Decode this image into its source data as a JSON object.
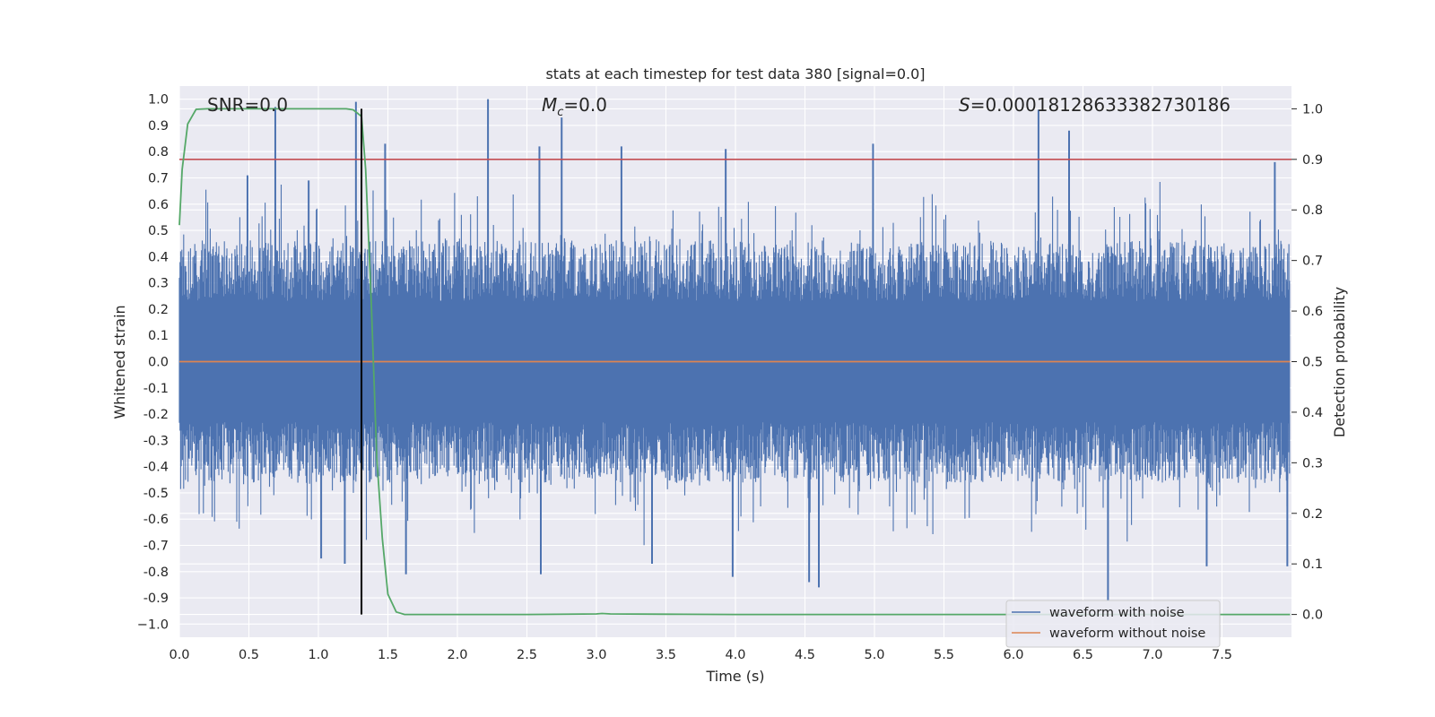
{
  "chart_data": {
    "type": "line",
    "title": "stats at each timestep for test data 380 [signal=0.0]",
    "xlabel": "Time (s)",
    "ylabel": "Whitened strain",
    "y2label": "Detection probability",
    "xlim": [
      0.0,
      8.0
    ],
    "ylim": [
      -1.05,
      1.05
    ],
    "y2lim": [
      -0.045,
      1.045
    ],
    "xticks": [
      "0.0",
      "0.5",
      "1.0",
      "1.5",
      "2.0",
      "2.5",
      "3.0",
      "3.5",
      "4.0",
      "4.5",
      "5.0",
      "5.5",
      "6.0",
      "6.5",
      "7.0",
      "7.5"
    ],
    "xtick_values": [
      0.0,
      0.5,
      1.0,
      1.5,
      2.0,
      2.5,
      3.0,
      3.5,
      4.0,
      4.5,
      5.0,
      5.5,
      6.0,
      6.5,
      7.0,
      7.5
    ],
    "yticks": [
      "1.0",
      "0.9",
      "0.8",
      "0.7",
      "0.6",
      "0.5",
      "0.4",
      "0.3",
      "0.2",
      "0.1",
      "0.0",
      "-0.1",
      "-0.2",
      "-0.3",
      "-0.4",
      "-0.5",
      "-0.6",
      "-0.7",
      "-0.8",
      "-0.9",
      "−1.0"
    ],
    "ytick_values": [
      1.0,
      0.9,
      0.8,
      0.7,
      0.6,
      0.5,
      0.4,
      0.3,
      0.2,
      0.1,
      0.0,
      -0.1,
      -0.2,
      -0.3,
      -0.4,
      -0.5,
      -0.6,
      -0.7,
      -0.8,
      -0.9,
      -1.0
    ],
    "y2ticks": [
      "1.0",
      "0.9",
      "0.8",
      "0.7",
      "0.6",
      "0.5",
      "0.4",
      "0.3",
      "0.2",
      "0.1",
      "0.0"
    ],
    "y2tick_values": [
      1.0,
      0.9,
      0.8,
      0.7,
      0.6,
      0.5,
      0.4,
      0.3,
      0.2,
      0.1,
      0.0
    ],
    "annotations": {
      "snr": "SNR=0.0",
      "mc": "=0.0",
      "s": "=0.00018128633382730186"
    },
    "threshold": {
      "value": 0.9,
      "axis": "right",
      "color": "#c44e52"
    },
    "marker_line": {
      "x": 1.31,
      "color": "#000000"
    },
    "series": [
      {
        "name": "waveform with noise",
        "axis": "left",
        "color": "#4c72b0",
        "style": "noise",
        "envelope": [
          0.42,
          -0.42
        ],
        "spikes": [
          [
            0.69,
            0.97
          ],
          [
            0.49,
            0.71
          ],
          [
            0.93,
            0.69
          ],
          [
            1.27,
            0.99
          ],
          [
            1.48,
            0.83
          ],
          [
            2.22,
            1.0
          ],
          [
            2.59,
            0.82
          ],
          [
            2.75,
            0.93
          ],
          [
            3.18,
            0.82
          ],
          [
            3.93,
            0.81
          ],
          [
            4.99,
            0.83
          ],
          [
            6.18,
            0.96
          ],
          [
            6.4,
            0.88
          ],
          [
            7.88,
            0.76
          ],
          [
            1.19,
            -0.77
          ],
          [
            1.02,
            -0.75
          ],
          [
            1.63,
            -0.81
          ],
          [
            2.6,
            -0.81
          ],
          [
            3.4,
            -0.77
          ],
          [
            3.98,
            -0.82
          ],
          [
            4.53,
            -0.84
          ],
          [
            4.6,
            -0.86
          ],
          [
            6.68,
            -0.91
          ],
          [
            7.39,
            -0.78
          ],
          [
            7.97,
            -0.78
          ]
        ]
      },
      {
        "name": "waveform without noise",
        "axis": "left",
        "color": "#dd8452",
        "x": [
          0.0,
          7.99
        ],
        "y": [
          0.0,
          0.0
        ]
      },
      {
        "name": "",
        "axis": "right",
        "color": "#55a868",
        "x": [
          0.0,
          0.02,
          0.06,
          0.12,
          0.2,
          0.5,
          1.0,
          1.2,
          1.25,
          1.31,
          1.34,
          1.38,
          1.42,
          1.46,
          1.5,
          1.56,
          1.62,
          2.0,
          2.5,
          3.0,
          3.04,
          3.1,
          3.5,
          4.0,
          5.0,
          6.0,
          7.0,
          7.99
        ],
        "y": [
          0.77,
          0.88,
          0.97,
          0.999,
          1.0,
          1.0,
          1.0,
          1.0,
          0.998,
          0.985,
          0.88,
          0.62,
          0.31,
          0.15,
          0.04,
          0.005,
          0.0,
          0.0,
          0.0,
          0.001,
          0.002,
          0.001,
          0.0005,
          0.0,
          0.0,
          0.0,
          0.0,
          0.0
        ]
      }
    ],
    "legend": {
      "position": "bottom-right",
      "labels": [
        "waveform with noise",
        "waveform without noise"
      ]
    }
  }
}
